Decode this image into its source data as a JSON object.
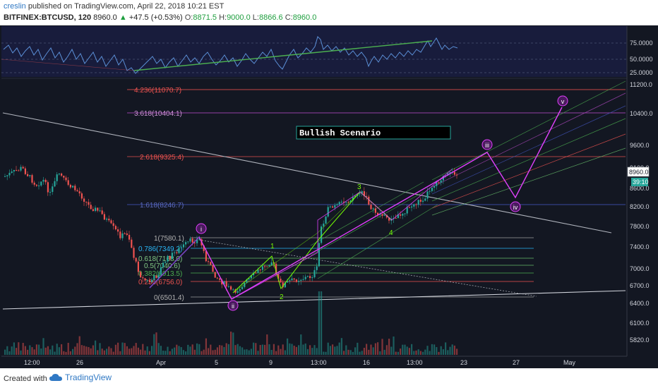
{
  "header": {
    "user": "creslin",
    "published_text": "published on TradingView.com, April 22, 2018 10:21 EST",
    "symbol": "BITFINEX:BTCUSD, 120",
    "last_price": "8960.0",
    "change_arrow": "▲",
    "change": "+47.5 (+0.53%)",
    "open_label": "O:",
    "open": "8871.5",
    "high_label": "H:",
    "high": "9000.0",
    "low_label": "L:",
    "low": "8866.6",
    "close_label": "C:",
    "close": "8960.0"
  },
  "rsi_panel": {
    "axis_labels": [
      "75.0000",
      "50.0000",
      "25.0000"
    ]
  },
  "price_axis": {
    "labels": [
      "11200.0",
      "10400.0",
      "9600.0",
      "9100.0",
      "8600.0",
      "8200.0",
      "7800.0",
      "7400.0",
      "7000.0",
      "6700.0",
      "6400.0",
      "6100.0",
      "5820.0"
    ],
    "current_price": "8960.0",
    "countdown": "39:10"
  },
  "time_axis": {
    "labels": [
      "12:00",
      "26",
      "Apr",
      "5",
      "9",
      "13:00",
      "16",
      "13:00",
      "23",
      "27",
      "May"
    ]
  },
  "annotation": {
    "title": "Bullish Scenario"
  },
  "fib_levels": {
    "ext_4236": "4.236(11070.7)",
    "ext_3618": "3.618(10404.1)",
    "ext_2618": "2.618(9325.4)",
    "ext_1618": "1.618(8246.7)",
    "r_1": "1(7580.1)",
    "r_786": "0.786(7349.2)",
    "r_618": "0.618(7168.0)",
    "r_5": "0.5(7040.6)",
    "r_382": "0.382(6913.5)",
    "r_236": "0.236(6756.0)",
    "r_0": "0(6501.4)"
  },
  "waves": {
    "i": "i",
    "ii": "ii",
    "iii": "iii",
    "iv": "iv",
    "v": "v",
    "sub_1": "1",
    "sub_2": "2",
    "sub_3": "3",
    "sub_4": "4"
  },
  "footer": {
    "created_with": "Created with",
    "brand": "TradingView"
  },
  "colors": {
    "background": "#131722",
    "candle_up": "#26a69a",
    "candle_down": "#ef5350",
    "wave": "#e040fb",
    "sub_wave": "#76ff03",
    "rsi_line": "#5b8fd6",
    "rsi_trend": "#4caf50",
    "label_fill": "#4a1a5e"
  }
}
